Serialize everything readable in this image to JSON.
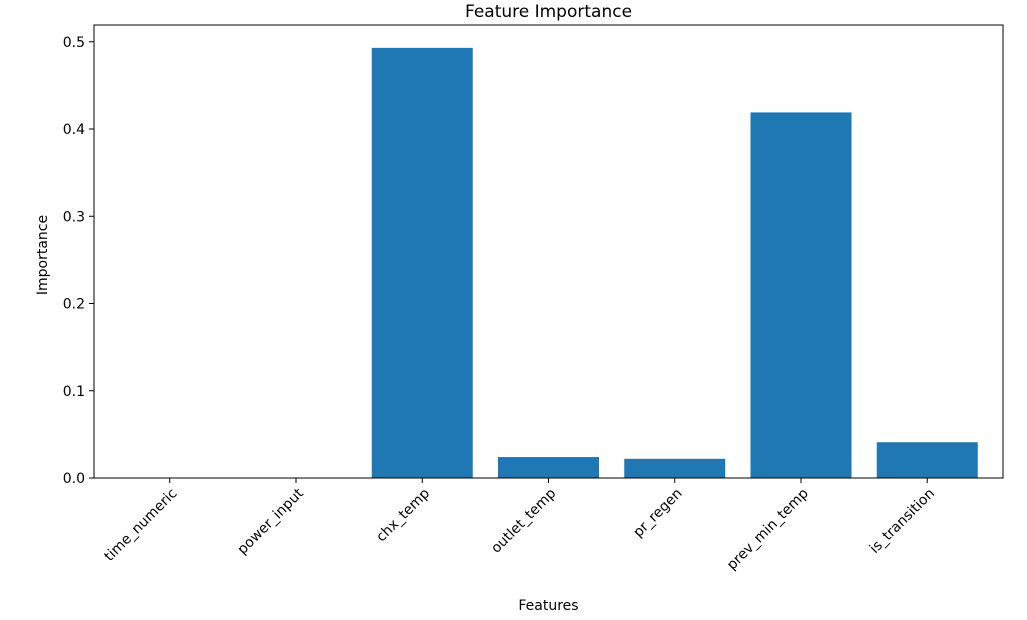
{
  "chart_data": {
    "type": "bar",
    "title": "Feature Importance",
    "xlabel": "Features",
    "ylabel": "Importance",
    "categories": [
      "time_numeric",
      "power_input",
      "chx_temp",
      "outlet_temp",
      "pr_regen",
      "prev_min_temp",
      "is_transition"
    ],
    "values": [
      0.0,
      0.0,
      0.493,
      0.024,
      0.022,
      0.419,
      0.041
    ],
    "ylim": [
      0,
      0.5192
    ],
    "yticks": [
      0.0,
      0.1,
      0.2,
      0.3,
      0.4,
      0.5
    ],
    "ytick_labels": [
      "0.0",
      "0.1",
      "0.2",
      "0.3",
      "0.4",
      "0.5"
    ],
    "grid": false,
    "legend": "none",
    "xtick_rotation": 45,
    "bar_color": "#1f77b4"
  }
}
